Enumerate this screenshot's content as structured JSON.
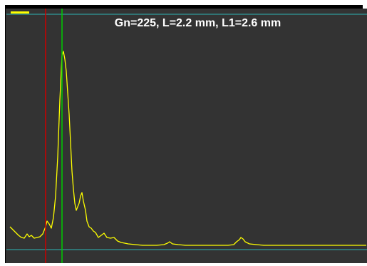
{
  "scope": {
    "readout": "Gn=225, L=2.2 mm, L1=2.6 mm",
    "background": "#333333",
    "frame_color": "#000000",
    "signal_color": "#ffff00",
    "marker_red_color": "#cc0000",
    "marker_green_color": "#00cc00",
    "baseline_color": "#2f8a8a",
    "indicator_color": "#ffff00"
  }
}
